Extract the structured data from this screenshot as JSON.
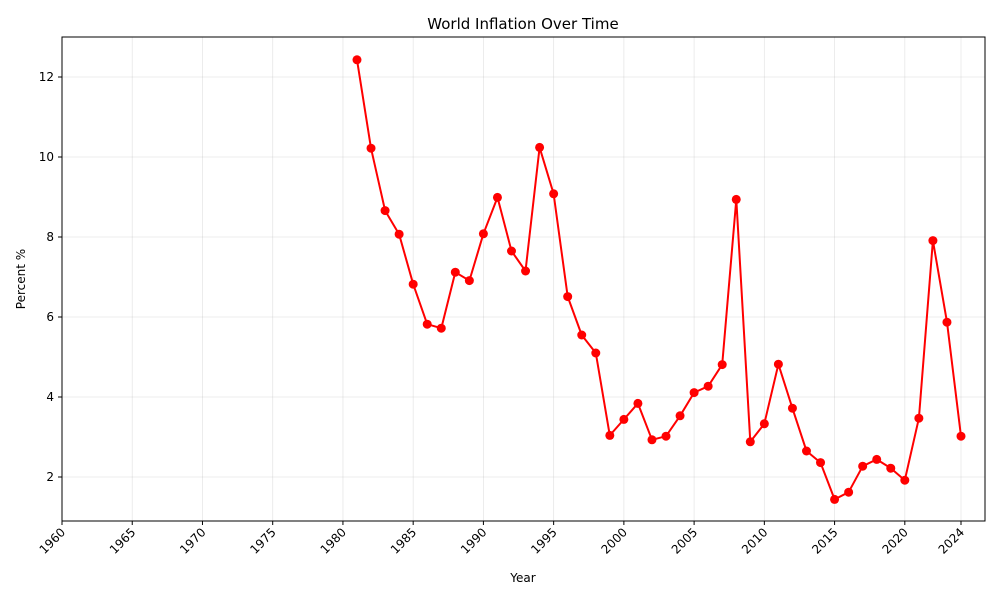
{
  "chart_data": {
    "type": "line",
    "title": "World Inflation Over Time",
    "xlabel": "Year",
    "ylabel": "Percent %",
    "xlim": [
      1960,
      2024
    ],
    "ylim": [
      0.9,
      13.0
    ],
    "x_ticks": [
      1960,
      1965,
      1970,
      1975,
      1980,
      1985,
      1990,
      1995,
      2000,
      2005,
      2010,
      2015,
      2020,
      2024
    ],
    "y_ticks": [
      2,
      4,
      6,
      8,
      10,
      12
    ],
    "grid": true,
    "legend": "none",
    "color": "#ff0000",
    "x_tick_rotation_deg": 45,
    "series": [
      {
        "x": [
          1981,
          1982,
          1983,
          1984,
          1985,
          1986,
          1987,
          1988,
          1989,
          1990,
          1991,
          1992,
          1993,
          1994,
          1995,
          1996,
          1997,
          1998,
          1999,
          2000,
          2001,
          2002,
          2003,
          2004,
          2005,
          2006,
          2007,
          2008,
          2009,
          2010,
          2011,
          2012,
          2013,
          2014,
          2015,
          2016,
          2017,
          2018,
          2019,
          2020,
          2021,
          2022,
          2023,
          2024
        ],
        "values": [
          12.43,
          10.22,
          8.66,
          8.07,
          6.82,
          5.82,
          5.72,
          7.12,
          6.91,
          8.08,
          8.99,
          7.65,
          7.15,
          10.24,
          9.08,
          6.51,
          5.55,
          5.1,
          3.04,
          3.44,
          3.84,
          2.93,
          3.02,
          3.53,
          4.11,
          4.27,
          4.81,
          8.94,
          2.88,
          3.33,
          4.82,
          3.72,
          2.65,
          2.36,
          1.44,
          1.62,
          2.27,
          2.44,
          2.22,
          1.92,
          3.47,
          7.91,
          5.87,
          3.02
        ]
      }
    ]
  }
}
